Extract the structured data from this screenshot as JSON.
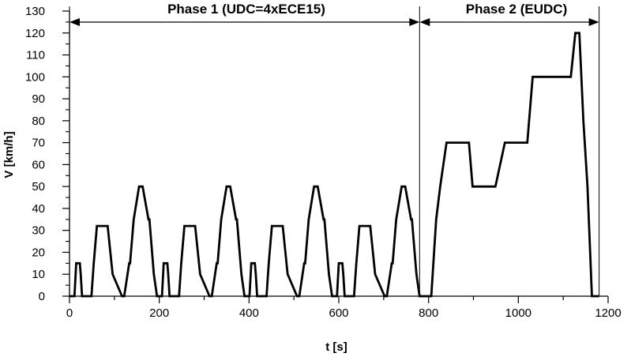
{
  "chart_data": {
    "type": "line",
    "title": "",
    "xlabel": "t [s]",
    "ylabel": "V  [km/h]",
    "xlim": [
      0,
      1200
    ],
    "ylim": [
      0,
      130
    ],
    "grid": false,
    "xticks": [
      0,
      200,
      400,
      600,
      800,
      1000,
      1200
    ],
    "yticks": [
      0,
      10,
      20,
      30,
      40,
      50,
      60,
      70,
      80,
      90,
      100,
      110,
      120,
      130
    ],
    "x": [
      0,
      11,
      15,
      23,
      25,
      28,
      49,
      54,
      61,
      85,
      96,
      117,
      122,
      133,
      135,
      143,
      155,
      163,
      176,
      178,
      188,
      195,
      206,
      210,
      218,
      220,
      223,
      244,
      249,
      256,
      280,
      291,
      312,
      317,
      328,
      330,
      338,
      350,
      358,
      371,
      373,
      383,
      390,
      401,
      405,
      413,
      415,
      418,
      439,
      444,
      451,
      475,
      486,
      507,
      512,
      523,
      525,
      533,
      545,
      553,
      566,
      568,
      578,
      585,
      596,
      600,
      608,
      610,
      613,
      634,
      639,
      646,
      670,
      681,
      702,
      707,
      718,
      720,
      728,
      740,
      748,
      761,
      763,
      773,
      780,
      800,
      806,
      817,
      826,
      840,
      890,
      898,
      940,
      949,
      970,
      1020,
      1032,
      1082,
      1117,
      1127,
      1136,
      1145,
      1154,
      1164,
      1180
    ],
    "series": [
      {
        "values": [
          0,
          0,
          15,
          15,
          10,
          0,
          0,
          15,
          32,
          32,
          10,
          0,
          0,
          15,
          15,
          35,
          50,
          50,
          35,
          35,
          10,
          0,
          0,
          15,
          15,
          10,
          0,
          0,
          15,
          32,
          32,
          10,
          0,
          0,
          15,
          15,
          35,
          50,
          50,
          35,
          35,
          10,
          0,
          0,
          15,
          15,
          10,
          0,
          0,
          15,
          32,
          32,
          10,
          0,
          0,
          15,
          15,
          35,
          50,
          50,
          35,
          35,
          10,
          0,
          0,
          15,
          15,
          10,
          0,
          0,
          15,
          32,
          32,
          10,
          0,
          0,
          15,
          15,
          35,
          50,
          50,
          35,
          35,
          10,
          0,
          0,
          0,
          35,
          50,
          70,
          70,
          50,
          50,
          50,
          70,
          70,
          100,
          100,
          100,
          120,
          120,
          80,
          50,
          0,
          0
        ]
      }
    ],
    "annotations": [
      {
        "text": "Phase 1 (UDC=4xECE15)",
        "x_start": 0,
        "x_end": 780
      },
      {
        "text": "Phase 2 (EUDC)",
        "x_start": 780,
        "x_end": 1180
      }
    ]
  },
  "colors": {
    "line": "#000000",
    "axis": "#000000",
    "background": "#ffffff"
  }
}
